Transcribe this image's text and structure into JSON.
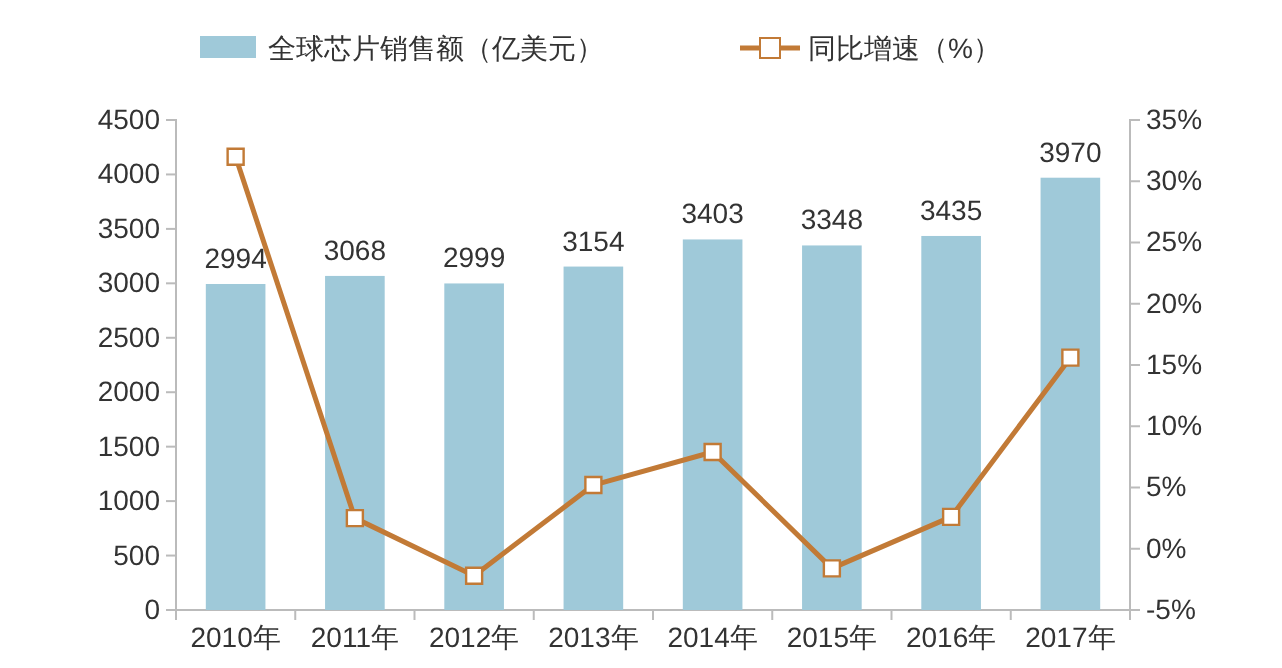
{
  "chart_data": {
    "type": "bar",
    "categories": [
      "2010年",
      "2011年",
      "2012年",
      "2013年",
      "2014年",
      "2015年",
      "2016年",
      "2017年"
    ],
    "series": [
      {
        "name": "全球芯片销售额（亿美元）",
        "color": "#9fc9d9",
        "values": [
          2994,
          3068,
          2999,
          3154,
          3403,
          3348,
          3435,
          3970
        ],
        "data_labels": true
      },
      {
        "name": "同比增速（%）",
        "type": "line",
        "axis": "y2",
        "color": "#c27a36",
        "marker": "square",
        "values": [
          32,
          2.5,
          -2.2,
          5.2,
          7.9,
          -1.6,
          2.6,
          15.6
        ]
      }
    ],
    "ylim": [
      0,
      4500
    ],
    "yticks": [
      0,
      500,
      1000,
      1500,
      2000,
      2500,
      3000,
      3500,
      4000,
      4500
    ],
    "y2lim": [
      -5,
      35
    ],
    "y2ticks": [
      {
        "value": -5,
        "label": "-5%"
      },
      {
        "value": 0,
        "label": "0%"
      },
      {
        "value": 5,
        "label": "5%"
      },
      {
        "value": 10,
        "label": "10%"
      },
      {
        "value": 15,
        "label": "15%"
      },
      {
        "value": 20,
        "label": "20%"
      },
      {
        "value": 25,
        "label": "25%"
      },
      {
        "value": 30,
        "label": "30%"
      },
      {
        "value": 35,
        "label": "35%"
      }
    ],
    "grid": false,
    "legend": "top"
  }
}
